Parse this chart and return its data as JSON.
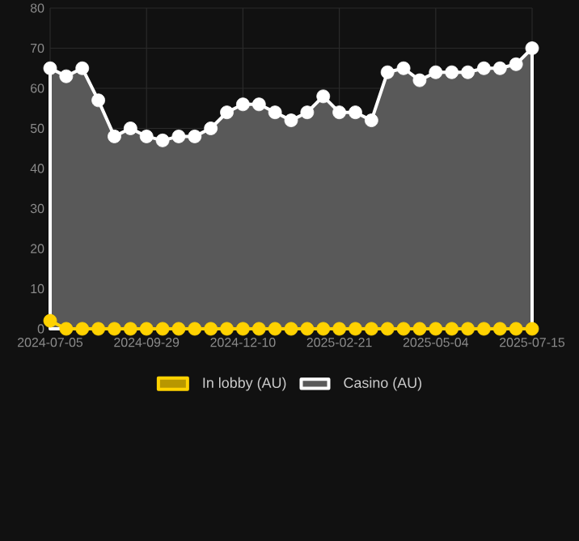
{
  "chart_data": {
    "type": "area",
    "categories": [
      "2024-07-05",
      null,
      null,
      null,
      null,
      null,
      "2024-09-29",
      null,
      null,
      null,
      null,
      null,
      "2024-12-10",
      null,
      null,
      null,
      null,
      null,
      "2025-02-21",
      null,
      null,
      null,
      null,
      null,
      "2025-05-04",
      null,
      null,
      null,
      null,
      null,
      "2025-07-15"
    ],
    "series": [
      {
        "name": "In lobby (AU)",
        "type": "line",
        "color": "#ffd200",
        "values": [
          2,
          0,
          0,
          0,
          0,
          0,
          0,
          0,
          0,
          0,
          0,
          0,
          0,
          0,
          0,
          0,
          0,
          0,
          0,
          0,
          0,
          0,
          0,
          0,
          0,
          0,
          0,
          0,
          0,
          0,
          0
        ]
      },
      {
        "name": "Casino (AU)",
        "color": "#ffffff",
        "values": [
          65,
          63,
          65,
          57,
          48,
          50,
          48,
          47,
          48,
          48,
          50,
          54,
          56,
          56,
          54,
          52,
          54,
          58,
          54,
          54,
          52,
          64,
          65,
          62,
          64,
          64,
          64,
          65,
          65,
          66,
          70
        ]
      }
    ],
    "ylim": [
      0,
      80
    ],
    "yticks": [
      0,
      10,
      20,
      30,
      40,
      50,
      60,
      70,
      80
    ],
    "grid": true,
    "legend": "bottom",
    "marker": "circle",
    "line_style": "solid"
  }
}
